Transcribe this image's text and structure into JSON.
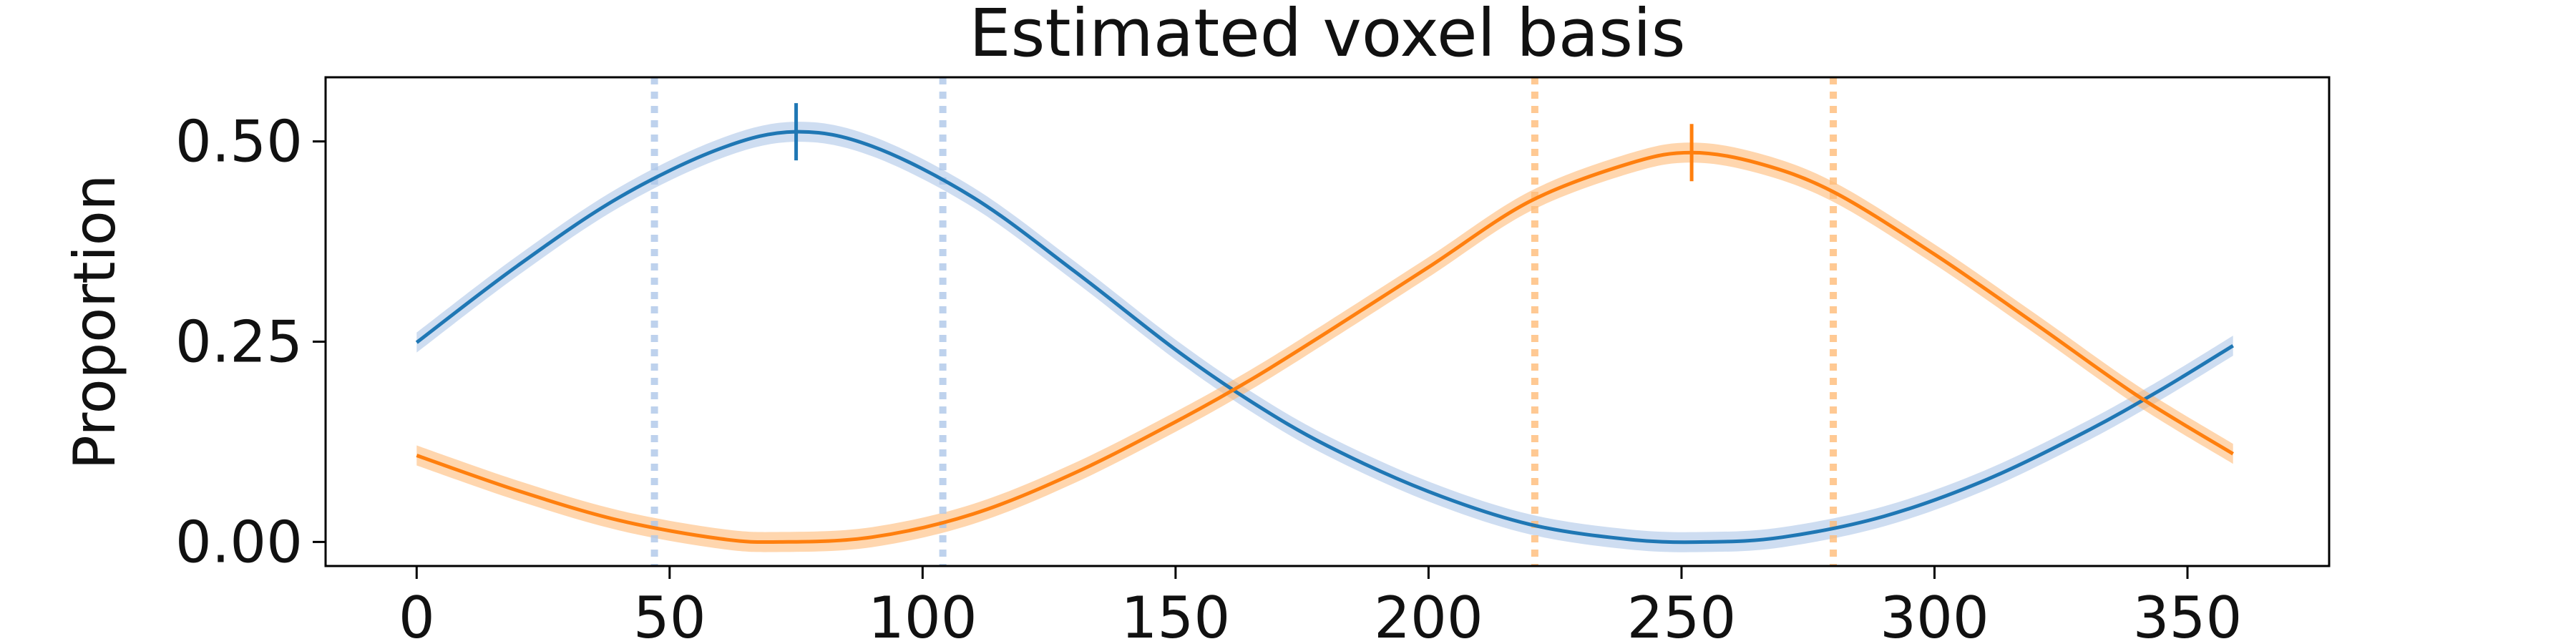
{
  "chart_data": {
    "type": "line",
    "title": "Estimated voxel basis",
    "xlabel": "",
    "ylabel": "Proportion",
    "xlim": [
      -18,
      378
    ],
    "ylim": [
      -0.03,
      0.58
    ],
    "xticks": [
      0,
      50,
      100,
      150,
      200,
      250,
      300,
      350
    ],
    "yticks": [
      0.0,
      0.25,
      0.5
    ],
    "ytick_labels": [
      "0.00",
      "0.25",
      "0.50"
    ],
    "grid": false,
    "legend": "none",
    "series": [
      {
        "color": "#1f77b4",
        "band_color": "#aec7e8",
        "x": [
          0,
          20,
          40,
          60,
          75,
          90,
          110,
          130,
          150,
          165,
          180,
          200,
          220,
          240,
          255,
          270,
          290,
          310,
          330,
          345,
          359
        ],
        "y": [
          0.249,
          0.345,
          0.43,
          0.491,
          0.512,
          0.494,
          0.43,
          0.338,
          0.24,
          0.175,
          0.12,
          0.063,
          0.022,
          0.003,
          0.0,
          0.006,
          0.032,
          0.077,
          0.138,
          0.191,
          0.245
        ],
        "peak": {
          "x": 75,
          "y": 0.512
        },
        "dashed_markers": [
          47,
          104
        ]
      },
      {
        "color": "#ff7f0e",
        "band_color": "#ffbb78",
        "x": [
          0,
          20,
          40,
          60,
          72,
          90,
          110,
          130,
          150,
          165,
          180,
          200,
          220,
          240,
          252,
          265,
          280,
          300,
          320,
          340,
          359
        ],
        "y": [
          0.108,
          0.064,
          0.027,
          0.004,
          0.0,
          0.006,
          0.035,
          0.086,
          0.15,
          0.203,
          0.262,
          0.343,
          0.425,
          0.473,
          0.486,
          0.473,
          0.437,
          0.359,
          0.272,
          0.183,
          0.11
        ],
        "peak": {
          "x": 252,
          "y": 0.486
        },
        "dashed_markers": [
          221,
          280
        ]
      }
    ]
  }
}
